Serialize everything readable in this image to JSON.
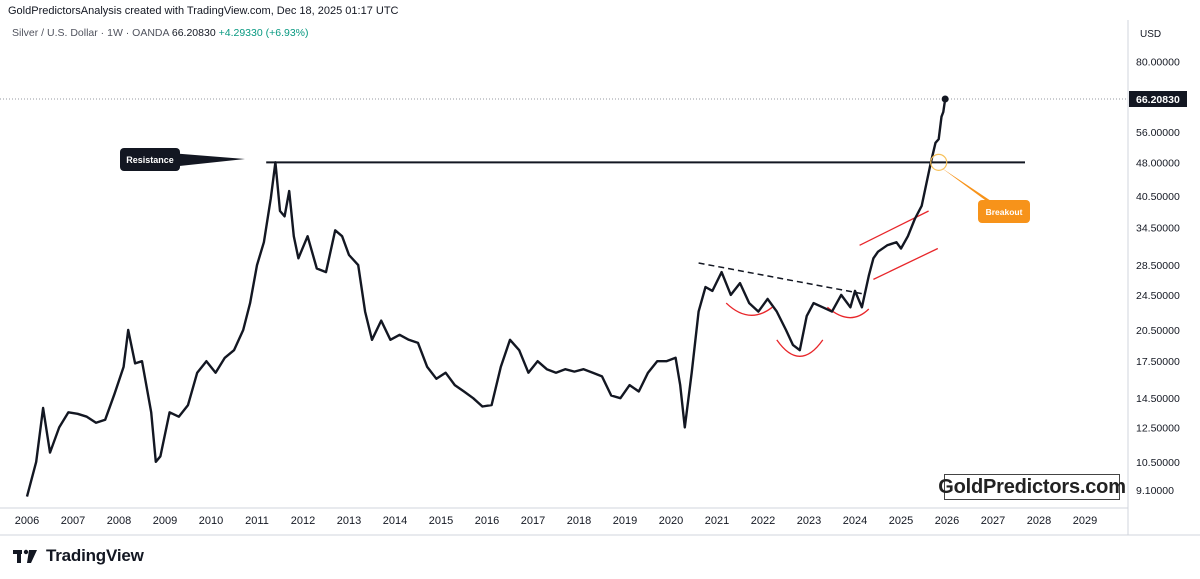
{
  "header": {
    "author_line": "GoldPredictorsAnalysis created with TradingView.com, Dec 18, 2025 01:17 UTC"
  },
  "legend": {
    "symbol": "Silver / U.S. Dollar · 1W · OANDA",
    "last": "66.20830",
    "change": "+4.29330 (+6.93%)"
  },
  "colors": {
    "price_line": "#131722",
    "breakout_badge": "#f7931a",
    "pattern_red": "#e8262a",
    "price_label_bg": "#131722"
  },
  "annotations": {
    "resistance_label": "Resistance",
    "breakout_label": "Breakout",
    "watermark": "GoldPredictors.com"
  },
  "footer": {
    "brand": "TradingView"
  },
  "chart_data": {
    "type": "line",
    "currency_label": "USD",
    "y_scale": "log",
    "y_ticks": [
      "80.00000",
      "56.00000",
      "48.00000",
      "40.50000",
      "34.50000",
      "28.50000",
      "24.50000",
      "20.50000",
      "17.50000",
      "14.50000",
      "12.50000",
      "10.50000",
      "9.10000"
    ],
    "last_price_label": "66.20830",
    "x_ticks": [
      "2006",
      "2007",
      "2008",
      "2009",
      "2010",
      "2011",
      "2012",
      "2013",
      "2014",
      "2015",
      "2016",
      "2017",
      "2018",
      "2019",
      "2020",
      "2021",
      "2022",
      "2023",
      "2024",
      "2025",
      "2026",
      "2027",
      "2028",
      "2029"
    ],
    "series": [
      {
        "x": [
          2006.0,
          2006.2,
          2006.35,
          2006.5,
          2006.7,
          2006.9,
          2007.1,
          2007.3,
          2007.5,
          2007.7,
          2007.9,
          2008.1,
          2008.2,
          2008.35,
          2008.5,
          2008.7,
          2008.8,
          2008.9,
          2009.1,
          2009.3,
          2009.5,
          2009.7,
          2009.9,
          2010.1,
          2010.3,
          2010.5,
          2010.7,
          2010.85,
          2011.0,
          2011.15,
          2011.3,
          2011.4,
          2011.5,
          2011.6,
          2011.7,
          2011.8,
          2011.9,
          2012.1,
          2012.3,
          2012.5,
          2012.7,
          2012.85,
          2013.0,
          2013.2,
          2013.35,
          2013.5,
          2013.7,
          2013.9,
          2014.1,
          2014.3,
          2014.5,
          2014.7,
          2014.9,
          2015.1,
          2015.3,
          2015.5,
          2015.7,
          2015.9,
          2016.1,
          2016.3,
          2016.5,
          2016.7,
          2016.9,
          2017.1,
          2017.3,
          2017.5,
          2017.7,
          2017.9,
          2018.1,
          2018.3,
          2018.5,
          2018.7,
          2018.9,
          2019.1,
          2019.3,
          2019.5,
          2019.7,
          2019.9,
          2020.1,
          2020.2,
          2020.3,
          2020.45,
          2020.6,
          2020.75,
          2020.9,
          2021.1,
          2021.3,
          2021.5,
          2021.7,
          2021.9,
          2022.1,
          2022.3,
          2022.5,
          2022.65,
          2022.8,
          2022.95,
          2023.1,
          2023.3,
          2023.5,
          2023.7,
          2023.9,
          2024.0,
          2024.15,
          2024.3,
          2024.4,
          2024.5,
          2024.7,
          2024.9,
          2025.0,
          2025.15,
          2025.3,
          2025.45,
          2025.55,
          2025.65,
          2025.75,
          2025.82,
          2025.88,
          2025.92,
          2025.96
        ],
        "y": [
          8.8,
          10.5,
          13.8,
          11.0,
          12.5,
          13.5,
          13.4,
          13.2,
          12.8,
          13.0,
          14.8,
          17.0,
          20.5,
          17.3,
          17.5,
          13.5,
          10.5,
          10.8,
          13.5,
          13.2,
          14.0,
          16.5,
          17.5,
          16.5,
          17.8,
          18.5,
          20.5,
          23.5,
          28.5,
          32.0,
          40.0,
          48.0,
          37.5,
          36.5,
          41.5,
          33.0,
          29.5,
          33.0,
          28.0,
          27.5,
          34.0,
          33.0,
          30.0,
          28.5,
          22.5,
          19.5,
          21.5,
          19.5,
          20.0,
          19.5,
          19.2,
          17.0,
          16.0,
          16.5,
          15.5,
          15.0,
          14.5,
          13.9,
          14.0,
          17.0,
          19.5,
          18.5,
          16.5,
          17.5,
          16.8,
          16.5,
          16.8,
          16.6,
          16.8,
          16.5,
          16.2,
          14.7,
          14.5,
          15.5,
          15.0,
          16.5,
          17.5,
          17.5,
          17.8,
          15.5,
          12.5,
          16.5,
          22.5,
          25.5,
          25.0,
          27.5,
          24.5,
          26.0,
          23.5,
          22.5,
          24.0,
          22.5,
          20.5,
          19.0,
          18.5,
          22.0,
          23.5,
          23.0,
          22.5,
          24.5,
          23.0,
          25.0,
          23.0,
          27.0,
          29.5,
          30.5,
          31.5,
          32.0,
          31.0,
          33.0,
          36.0,
          38.5,
          43.0,
          48.0,
          53.0,
          54.0,
          60.5,
          62.0,
          66.2
        ]
      }
    ],
    "resistance": 48.0,
    "annotations": [
      "Resistance",
      "Breakout"
    ]
  }
}
